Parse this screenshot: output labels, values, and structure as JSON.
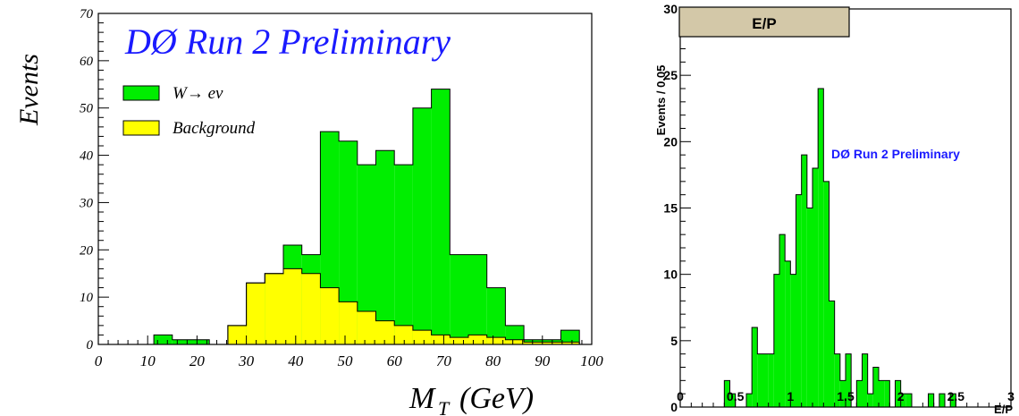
{
  "chart_data": [
    {
      "type": "bar",
      "subtype": "stacked-histogram",
      "title": "DØ Run 2  Preliminary",
      "xlabel": "M",
      "xlabel_sub": "T",
      "xlabel_unit": "(GeV)",
      "ylabel": "Events",
      "xlim": [
        0,
        100
      ],
      "ylim": [
        0,
        70
      ],
      "x_ticks": [
        "0",
        "10",
        "20",
        "30",
        "40",
        "50",
        "60",
        "70",
        "80",
        "90",
        "100"
      ],
      "y_ticks": [
        "0",
        "10",
        "20",
        "30",
        "40",
        "50",
        "60",
        "70"
      ],
      "bin_edges": [
        0,
        3.75,
        7.5,
        11.25,
        15,
        18.75,
        22.5,
        26.25,
        30,
        33.75,
        37.5,
        41.25,
        45,
        48.75,
        52.5,
        56.25,
        60,
        63.75,
        67.5,
        71.25,
        75,
        78.75,
        82.5,
        86.25,
        90,
        93.75,
        97.5,
        101.25
      ],
      "legend_position": "top-left",
      "series": [
        {
          "name": "W→ eν",
          "legend_label": "W→ eν",
          "color": "#00ee00",
          "values": [
            0,
            0,
            0,
            2,
            1,
            1,
            0,
            4,
            13,
            15,
            21,
            19,
            45,
            43,
            38,
            41,
            38,
            50,
            54,
            19,
            19,
            12,
            4,
            1,
            1,
            3,
            0
          ]
        },
        {
          "name": "Background",
          "legend_label": "Background",
          "color": "#ffff00",
          "values": [
            0,
            0,
            0,
            0,
            0,
            0,
            0,
            4,
            13,
            15,
            16,
            15,
            12,
            9,
            7,
            5,
            4,
            3,
            2,
            1.5,
            2,
            1.5,
            1,
            0.5,
            0.5,
            0.5,
            0
          ]
        }
      ]
    },
    {
      "type": "bar",
      "subtype": "histogram",
      "title": "E/P",
      "annotation": "DØ Run 2 Preliminary",
      "xlabel": "E/P",
      "ylabel": "Events / 0.05",
      "xlim": [
        0,
        3
      ],
      "ylim": [
        0,
        30
      ],
      "x_ticks": [
        "0",
        "0.5",
        "1",
        "1.5",
        "2",
        "2.5",
        "3"
      ],
      "y_ticks": [
        "0",
        "5",
        "10",
        "15",
        "20",
        "25",
        "30"
      ],
      "bin_start": 0,
      "bin_width": 0.05,
      "series": [
        {
          "name": "E/P",
          "color": "#00ee00",
          "values": [
            0,
            0,
            0,
            0,
            0,
            0,
            0,
            0,
            2,
            1,
            0,
            0,
            1,
            6,
            4,
            4,
            4,
            10,
            13,
            11,
            10,
            16,
            19,
            15,
            18,
            24,
            17,
            8,
            4,
            2,
            4,
            0,
            2,
            4,
            1,
            3,
            2,
            2,
            0,
            2,
            1,
            1,
            0,
            0,
            0,
            1,
            0,
            1,
            0,
            1,
            0,
            0,
            0,
            0,
            0,
            0,
            0,
            0,
            0,
            0,
            0
          ]
        }
      ]
    }
  ]
}
